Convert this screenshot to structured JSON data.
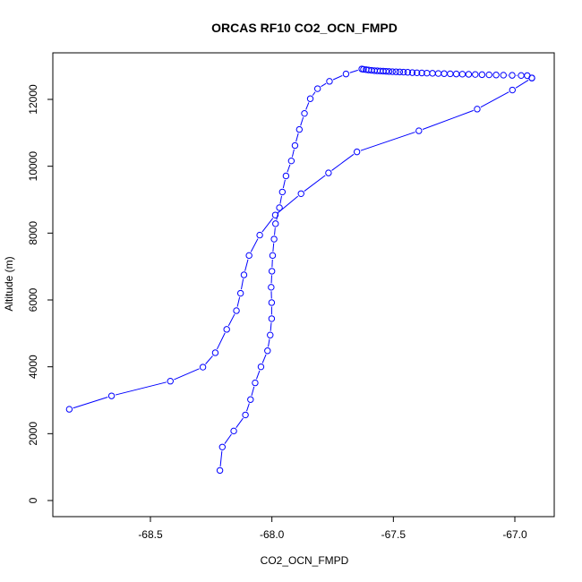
{
  "chart_data": {
    "type": "line",
    "title": "ORCAS RF10 CO2_OCN_FMPD",
    "xlabel": "CO2_OCN_FMPD",
    "ylabel": "Altitude (m)",
    "xlim": [
      -68.85,
      -66.9
    ],
    "ylim": [
      0,
      12900
    ],
    "x_ticks": [
      -68.5,
      -68.0,
      -67.5,
      -67.0
    ],
    "x_tick_labels": [
      "-68.5",
      "-68.0",
      "-67.5",
      "-67.0"
    ],
    "y_ticks": [
      0,
      2000,
      4000,
      6000,
      8000,
      10000,
      12000
    ],
    "y_tick_labels": [
      "0",
      "2000",
      "4000",
      "6000",
      "8000",
      "10000",
      "12000"
    ],
    "grid": false,
    "series": [
      {
        "color": "#0000ff",
        "marker": "open-circle",
        "points": [
          [
            -68.214,
            900
          ],
          [
            -68.204,
            1600
          ],
          [
            -68.157,
            2080
          ],
          [
            -68.109,
            2560
          ],
          [
            -68.088,
            3020
          ],
          [
            -68.069,
            3520
          ],
          [
            -68.045,
            4000
          ],
          [
            -68.018,
            4480
          ],
          [
            -68.007,
            4950
          ],
          [
            -68.001,
            5440
          ],
          [
            -68.001,
            5920
          ],
          [
            -68.003,
            6380
          ],
          [
            -68.0,
            6860
          ],
          [
            -67.997,
            7330
          ],
          [
            -67.991,
            7820
          ],
          [
            -67.985,
            8280
          ],
          [
            -67.969,
            8760
          ],
          [
            -67.957,
            9230
          ],
          [
            -67.942,
            9710
          ],
          [
            -67.92,
            10160
          ],
          [
            -67.905,
            10620
          ],
          [
            -67.887,
            11100
          ],
          [
            -67.866,
            11580
          ],
          [
            -67.842,
            12020
          ],
          [
            -67.812,
            12320
          ],
          [
            -67.763,
            12540
          ],
          [
            -67.695,
            12760
          ],
          [
            -67.63,
            12910
          ],
          [
            -67.623,
            12900
          ],
          [
            -67.612,
            12890
          ],
          [
            -67.602,
            12880
          ],
          [
            -67.59,
            12870
          ],
          [
            -67.578,
            12860
          ],
          [
            -67.566,
            12855
          ],
          [
            -67.554,
            12850
          ],
          [
            -67.542,
            12845
          ],
          [
            -67.53,
            12840
          ],
          [
            -67.518,
            12835
          ],
          [
            -67.504,
            12830
          ],
          [
            -67.489,
            12825
          ],
          [
            -67.474,
            12820
          ],
          [
            -67.458,
            12815
          ],
          [
            -67.441,
            12810
          ],
          [
            -67.422,
            12800
          ],
          [
            -67.403,
            12795
          ],
          [
            -67.383,
            12790
          ],
          [
            -67.362,
            12785
          ],
          [
            -67.339,
            12780
          ],
          [
            -67.315,
            12775
          ],
          [
            -67.291,
            12770
          ],
          [
            -67.266,
            12765
          ],
          [
            -67.241,
            12760
          ],
          [
            -67.216,
            12755
          ],
          [
            -67.19,
            12750
          ],
          [
            -67.163,
            12745
          ],
          [
            -67.135,
            12740
          ],
          [
            -67.106,
            12735
          ],
          [
            -67.077,
            12730
          ],
          [
            -67.047,
            12725
          ],
          [
            -67.011,
            12720
          ],
          [
            -66.974,
            12715
          ],
          [
            -66.949,
            12710
          ],
          [
            -66.93,
            12640
          ]
        ]
      },
      {
        "color": "#0000ff",
        "marker": "open-circle",
        "points": [
          [
            -66.93,
            12640
          ],
          [
            -67.01,
            12280
          ],
          [
            -67.155,
            11710
          ],
          [
            -67.395,
            11060
          ],
          [
            -67.65,
            10430
          ],
          [
            -67.767,
            9800
          ],
          [
            -67.88,
            9180
          ],
          [
            -67.986,
            8540
          ],
          [
            -68.05,
            7940
          ],
          [
            -68.094,
            7330
          ],
          [
            -68.115,
            6750
          ],
          [
            -68.129,
            6200
          ],
          [
            -68.146,
            5680
          ],
          [
            -68.186,
            5120
          ],
          [
            -68.233,
            4420
          ],
          [
            -68.284,
            3990
          ],
          [
            -68.418,
            3570
          ],
          [
            -68.66,
            3130
          ],
          [
            -68.834,
            2730
          ]
        ]
      }
    ]
  }
}
